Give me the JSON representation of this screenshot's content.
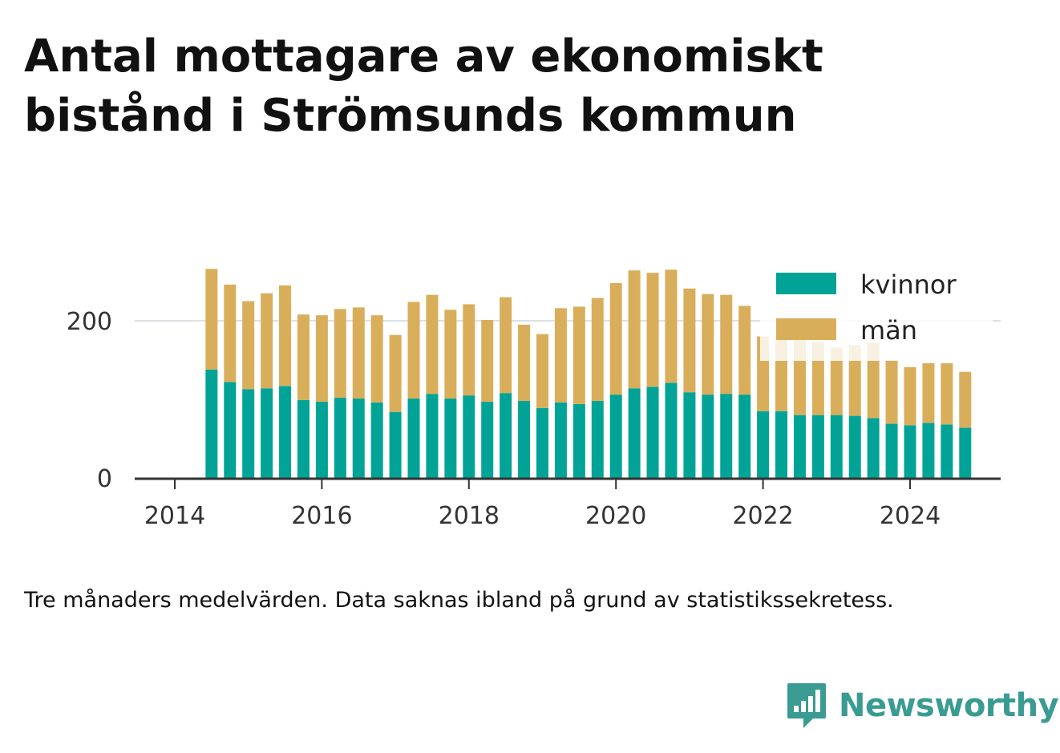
{
  "title": "Antal mottagare av ekonomiskt bistånd i Strömsunds kommun",
  "note": "Tre månaders medelvärden. Data saknas ibland på grund av statistikssekretess.",
  "brand": {
    "name": "Newsworthy",
    "icon": "newsworthy-logo-icon",
    "color": "#3a9b93"
  },
  "chart_data": {
    "type": "bar",
    "stacked": true,
    "x_unit": "quarter",
    "x": [
      "2014-Q2",
      "2014-Q3",
      "2014-Q4",
      "2015-Q1",
      "2015-Q2",
      "2015-Q3",
      "2015-Q4",
      "2016-Q1",
      "2016-Q2",
      "2016-Q3",
      "2016-Q4",
      "2017-Q1",
      "2017-Q2",
      "2017-Q3",
      "2017-Q4",
      "2018-Q1",
      "2018-Q2",
      "2018-Q3",
      "2018-Q4",
      "2019-Q1",
      "2019-Q2",
      "2019-Q3",
      "2019-Q4",
      "2020-Q1",
      "2020-Q2",
      "2020-Q3",
      "2020-Q4",
      "2021-Q1",
      "2021-Q2",
      "2021-Q3",
      "2021-Q4",
      "2022-Q1",
      "2022-Q2",
      "2022-Q3",
      "2022-Q4",
      "2023-Q1",
      "2023-Q2",
      "2023-Q3",
      "2023-Q4",
      "2024-Q1",
      "2024-Q2",
      "2024-Q3"
    ],
    "series": [
      {
        "name": "kvinnor",
        "color": "#00a396",
        "values": [
          138,
          122,
          113,
          114,
          117,
          99,
          97,
          102,
          101,
          96,
          84,
          101,
          107,
          101,
          105,
          97,
          108,
          98,
          89,
          96,
          94,
          98,
          106,
          114,
          116,
          121,
          109,
          106,
          107,
          106,
          85,
          85,
          80,
          80,
          80,
          79,
          76,
          69,
          67,
          70,
          68,
          64
        ]
      },
      {
        "name": "män",
        "color": "#d9ae5b",
        "values": [
          128,
          124,
          112,
          121,
          128,
          109,
          110,
          113,
          116,
          111,
          98,
          123,
          126,
          113,
          116,
          104,
          122,
          97,
          94,
          120,
          124,
          131,
          142,
          150,
          145,
          144,
          132,
          128,
          126,
          113,
          95,
          93,
          96,
          93,
          86,
          90,
          96,
          81,
          74,
          76,
          78,
          71
        ]
      }
    ],
    "xticks": [
      "2014",
      "2016",
      "2018",
      "2020",
      "2022",
      "2024"
    ],
    "yticks": [
      0,
      200
    ],
    "ylim": [
      0,
      280
    ],
    "grid": true,
    "legend": "top-right"
  }
}
